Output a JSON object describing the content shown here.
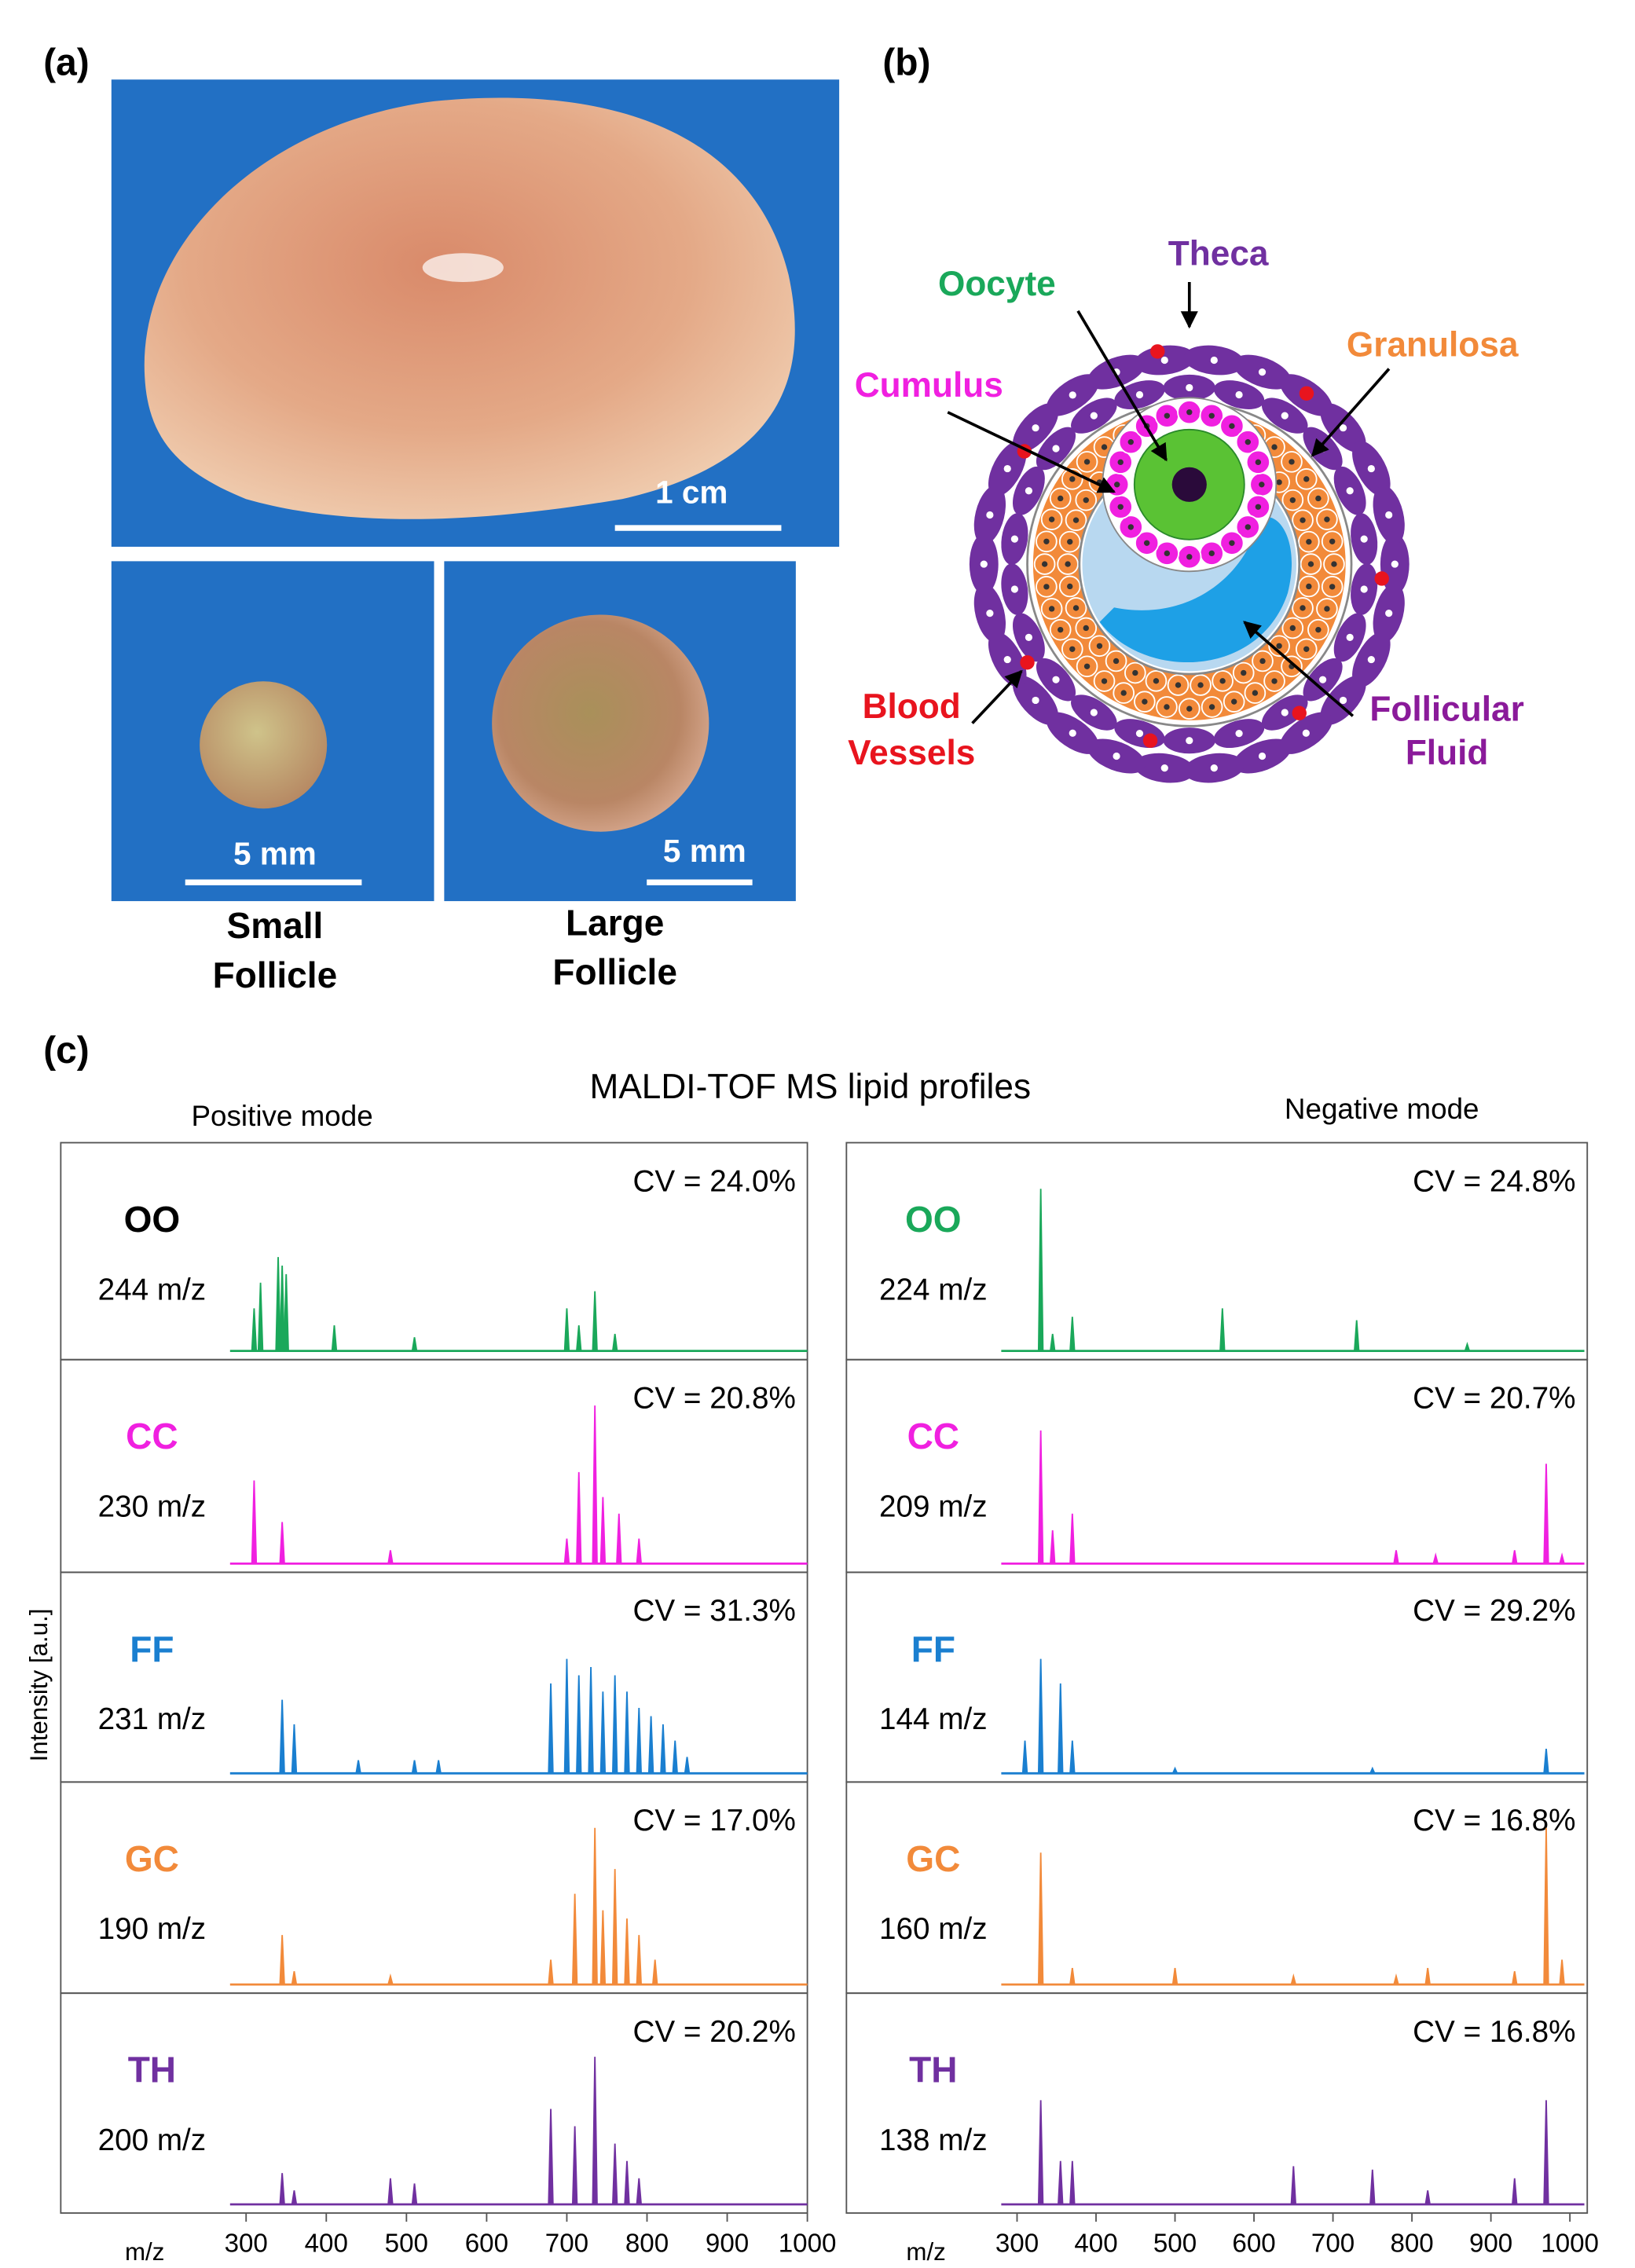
{
  "panel_a": {
    "label": "(a)",
    "scale_bars": [
      "1 cm",
      "5 mm",
      "5 mm"
    ],
    "small_caption": [
      "Small",
      "Follicle"
    ],
    "large_caption": [
      "Large",
      "Follicle"
    ]
  },
  "panel_b": {
    "label": "(b)",
    "labels": {
      "theca": "Theca",
      "oocyte": "Oocyte",
      "granulosa": "Granulosa",
      "cumulus": "Cumulus",
      "blood": [
        "Blood",
        "Vessels"
      ],
      "fluid": [
        "Follicular",
        "Fluid"
      ]
    }
  },
  "panel_c": {
    "label": "(c)",
    "title": "MALDI-TOF MS lipid profiles",
    "y_label": "Intensity [a.u.]",
    "x_label": "m/z",
    "xlim": [
      280,
      1000
    ],
    "xticks": [
      300,
      400,
      500,
      600,
      700,
      800,
      900,
      1000
    ],
    "modes": [
      {
        "name": "Positive mode",
        "rows": [
          {
            "sample": "OO",
            "label_color": "#000000",
            "color": "#1aa85a",
            "mz": "244 m/z",
            "cv": "CV = 24.0%",
            "peaks": [
              [
                310,
                25
              ],
              [
                318,
                40
              ],
              [
                340,
                55
              ],
              [
                345,
                50
              ],
              [
                350,
                45
              ],
              [
                410,
                15
              ],
              [
                510,
                8
              ],
              [
                700,
                25
              ],
              [
                715,
                15
              ],
              [
                735,
                35
              ],
              [
                760,
                10
              ]
            ]
          },
          {
            "sample": "CC",
            "label_color": "#f020e0",
            "color": "#f020e0",
            "mz": "230 m/z",
            "cv": "CV = 20.8%",
            "peaks": [
              [
                310,
                50
              ],
              [
                345,
                25
              ],
              [
                480,
                8
              ],
              [
                700,
                15
              ],
              [
                715,
                55
              ],
              [
                735,
                95
              ],
              [
                745,
                40
              ],
              [
                765,
                30
              ],
              [
                790,
                15
              ]
            ]
          },
          {
            "sample": "FF",
            "label_color": "#1a7fd0",
            "color": "#1a7fd0",
            "mz": "231 m/z",
            "cv": "CV = 31.3%",
            "peaks": [
              [
                345,
                45
              ],
              [
                360,
                30
              ],
              [
                440,
                8
              ],
              [
                510,
                8
              ],
              [
                540,
                8
              ],
              [
                680,
                55
              ],
              [
                700,
                70
              ],
              [
                715,
                60
              ],
              [
                730,
                65
              ],
              [
                745,
                50
              ],
              [
                760,
                60
              ],
              [
                775,
                50
              ],
              [
                790,
                40
              ],
              [
                805,
                35
              ],
              [
                820,
                30
              ],
              [
                835,
                20
              ],
              [
                850,
                10
              ]
            ]
          },
          {
            "sample": "GC",
            "label_color": "#f28a3a",
            "color": "#f28a3a",
            "mz": "190 m/z",
            "cv": "CV = 17.0%",
            "peaks": [
              [
                345,
                30
              ],
              [
                360,
                8
              ],
              [
                480,
                5
              ],
              [
                680,
                15
              ],
              [
                710,
                55
              ],
              [
                735,
                95
              ],
              [
                745,
                45
              ],
              [
                760,
                70
              ],
              [
                775,
                40
              ],
              [
                790,
                30
              ],
              [
                810,
                15
              ]
            ]
          },
          {
            "sample": "TH",
            "label_color": "#7030a0",
            "color": "#7030a0",
            "mz": "200 m/z",
            "cv": "CV = 20.2%",
            "peaks": [
              [
                345,
                18
              ],
              [
                360,
                8
              ],
              [
                480,
                15
              ],
              [
                510,
                12
              ],
              [
                680,
                55
              ],
              [
                710,
                45
              ],
              [
                735,
                85
              ],
              [
                760,
                35
              ],
              [
                775,
                25
              ],
              [
                790,
                15
              ]
            ]
          }
        ]
      },
      {
        "name": "Negative mode",
        "rows": [
          {
            "sample": "OO",
            "label_color": "#1aa85a",
            "color": "#1aa85a",
            "mz": "224 m/z",
            "cv": "CV = 24.8%",
            "peaks": [
              [
                330,
                95
              ],
              [
                345,
                10
              ],
              [
                370,
                20
              ],
              [
                560,
                25
              ],
              [
                730,
                18
              ],
              [
                870,
                4
              ]
            ]
          },
          {
            "sample": "CC",
            "label_color": "#f020e0",
            "color": "#f020e0",
            "mz": "209 m/z",
            "cv": "CV = 20.7%",
            "peaks": [
              [
                330,
                80
              ],
              [
                345,
                20
              ],
              [
                370,
                30
              ],
              [
                780,
                8
              ],
              [
                830,
                5
              ],
              [
                930,
                8
              ],
              [
                970,
                60
              ],
              [
                990,
                5
              ]
            ]
          },
          {
            "sample": "FF",
            "label_color": "#1a7fd0",
            "color": "#1a7fd0",
            "mz": "144 m/z",
            "cv": "CV = 29.2%",
            "peaks": [
              [
                310,
                20
              ],
              [
                330,
                70
              ],
              [
                355,
                55
              ],
              [
                370,
                20
              ],
              [
                500,
                3
              ],
              [
                750,
                3
              ],
              [
                970,
                15
              ]
            ]
          },
          {
            "sample": "GC",
            "label_color": "#f28a3a",
            "color": "#f28a3a",
            "mz": "160 m/z",
            "cv": "CV = 16.8%",
            "peaks": [
              [
                330,
                80
              ],
              [
                370,
                10
              ],
              [
                500,
                10
              ],
              [
                650,
                5
              ],
              [
                780,
                5
              ],
              [
                820,
                10
              ],
              [
                930,
                8
              ],
              [
                970,
                95
              ],
              [
                990,
                15
              ]
            ]
          },
          {
            "sample": "TH",
            "label_color": "#7030a0",
            "color": "#7030a0",
            "mz": "138 m/z",
            "cv": "CV = 16.8%",
            "peaks": [
              [
                330,
                60
              ],
              [
                355,
                25
              ],
              [
                370,
                25
              ],
              [
                650,
                22
              ],
              [
                750,
                20
              ],
              [
                820,
                8
              ],
              [
                930,
                15
              ],
              [
                970,
                60
              ]
            ]
          }
        ]
      }
    ]
  }
}
